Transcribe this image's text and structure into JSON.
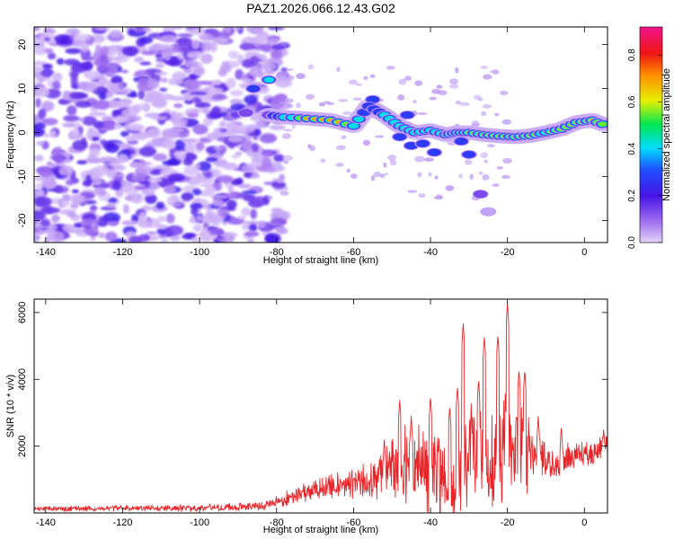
{
  "title": "PAZ1.2026.066.12.43.G02",
  "chart_data": [
    {
      "type": "heatmap",
      "xlabel": "Height of straight line (km)",
      "ylabel": "Frequency (Hz)",
      "xlim": [
        -143,
        6
      ],
      "ylim": [
        -25,
        24
      ],
      "xticks": [
        -140,
        -120,
        -100,
        -80,
        -60,
        -40,
        -20,
        0
      ],
      "yticks": [
        -20,
        -10,
        0,
        10,
        20
      ],
      "colorbar": {
        "label": "Normalized spectral amplitude",
        "range": [
          0,
          0.92
        ],
        "ticks": [
          0.0,
          0.2,
          0.4,
          0.6,
          0.8
        ]
      },
      "noise_region": {
        "x_range": [
          -143,
          -78
        ],
        "freq_range": [
          -25,
          24
        ]
      },
      "signal_track": [
        {
          "x": -82,
          "freq": 4,
          "amp": 0.25
        },
        {
          "x": -78,
          "freq": 3.5,
          "amp": 0.45
        },
        {
          "x": -72,
          "freq": 3.2,
          "amp": 0.75
        },
        {
          "x": -66,
          "freq": 2.8,
          "amp": 0.85
        },
        {
          "x": -60,
          "freq": 1.5,
          "amp": 0.55
        },
        {
          "x": -56,
          "freq": 6,
          "amp": 0.35
        },
        {
          "x": -52,
          "freq": 4,
          "amp": 0.45
        },
        {
          "x": -48,
          "freq": 1.5,
          "amp": 0.5
        },
        {
          "x": -44,
          "freq": 0,
          "amp": 0.45
        },
        {
          "x": -40,
          "freq": 0.5,
          "amp": 0.5
        },
        {
          "x": -36,
          "freq": -0.5,
          "amp": 0.45
        },
        {
          "x": -33,
          "freq": 0,
          "amp": 0.55
        },
        {
          "x": -30,
          "freq": 0,
          "amp": 0.6
        },
        {
          "x": -26,
          "freq": -0.5,
          "amp": 0.6
        },
        {
          "x": -22,
          "freq": -0.8,
          "amp": 0.65
        },
        {
          "x": -18,
          "freq": -1,
          "amp": 0.65
        },
        {
          "x": -14,
          "freq": -0.7,
          "amp": 0.6
        },
        {
          "x": -10,
          "freq": 0,
          "amp": 0.55
        },
        {
          "x": -6,
          "freq": 0.8,
          "amp": 0.65
        },
        {
          "x": -2,
          "freq": 2.3,
          "amp": 0.7
        },
        {
          "x": 2,
          "freq": 2.8,
          "amp": 0.8
        },
        {
          "x": 6,
          "freq": 1.5,
          "amp": 0.5
        }
      ],
      "extra_blobs": [
        {
          "x": -82,
          "freq": 12,
          "amp": 0.45
        },
        {
          "x": -86,
          "freq": 10,
          "amp": 0.3
        },
        {
          "x": -88,
          "freq": 4.5,
          "amp": 0.2
        },
        {
          "x": -55,
          "freq": 7.5,
          "amp": 0.3
        },
        {
          "x": -48,
          "freq": -1,
          "amp": 0.35
        },
        {
          "x": -45,
          "freq": -3,
          "amp": 0.35
        },
        {
          "x": -42,
          "freq": -2.5,
          "amp": 0.3
        },
        {
          "x": -39,
          "freq": -4.5,
          "amp": 0.3
        },
        {
          "x": -30,
          "freq": -5,
          "amp": 0.3
        },
        {
          "x": -32,
          "freq": -2,
          "amp": 0.3
        },
        {
          "x": -27,
          "freq": -14,
          "amp": 0.18
        },
        {
          "x": -25,
          "freq": -18,
          "amp": 0.12
        },
        {
          "x": -46,
          "freq": 4,
          "amp": 0.35
        }
      ]
    },
    {
      "type": "line",
      "xlabel": "Height of straight line (km)",
      "ylabel": "SNR (10 * v/v)",
      "xlim": [
        -143,
        6
      ],
      "ylim": [
        0,
        6400
      ],
      "xticks": [
        -140,
        -120,
        -100,
        -80,
        -60,
        -40,
        -20,
        0
      ],
      "yticks": [
        2000,
        4000,
        6000
      ],
      "series": [
        {
          "name": "SNR",
          "color": "#e8262a",
          "envelope": {
            "x": [
              -143,
              -100,
              -85,
              -78,
              -70,
              -62,
              -55,
              -50,
              -45,
              -40,
              -35,
              -32,
              -31,
              -28,
              -24,
              -21,
              -20,
              -19,
              -16,
              -12,
              -8,
              -4,
              0,
              3,
              6
            ],
            "baseline": [
              120,
              150,
              200,
              380,
              750,
              820,
              1000,
              1300,
              1450,
              1350,
              1050,
              1300,
              2100,
              1550,
              1550,
              2100,
              2300,
              1900,
              1700,
              1650,
              1400,
              1650,
              1750,
              1850,
              2000
            ],
            "spread": [
              90,
              120,
              150,
              250,
              400,
              450,
              800,
              1300,
              1700,
              1500,
              1350,
              1600,
              2000,
              1700,
              1700,
              2200,
              2500,
              2100,
              1700,
              800,
              500,
              500,
              450,
              450,
              400
            ]
          },
          "peaks": [
            {
              "x": -31.5,
              "y": 5700
            },
            {
              "x": -26,
              "y": 5300
            },
            {
              "x": -22.5,
              "y": 5350
            },
            {
              "x": -20,
              "y": 6300
            },
            {
              "x": -17,
              "y": 4300
            },
            {
              "x": -15.5,
              "y": 4300
            },
            {
              "x": -40,
              "y": 3500
            },
            {
              "x": -48,
              "y": 3400
            },
            {
              "x": -45,
              "y": 2900
            },
            {
              "x": -35,
              "y": 3200
            },
            {
              "x": -33,
              "y": 3800
            },
            {
              "x": -27.5,
              "y": 4000
            },
            {
              "x": -52,
              "y": 2200
            },
            {
              "x": -12,
              "y": 2900
            },
            {
              "x": -6,
              "y": 2600
            },
            {
              "x": 5,
              "y": 2550
            }
          ]
        }
      ]
    }
  ]
}
